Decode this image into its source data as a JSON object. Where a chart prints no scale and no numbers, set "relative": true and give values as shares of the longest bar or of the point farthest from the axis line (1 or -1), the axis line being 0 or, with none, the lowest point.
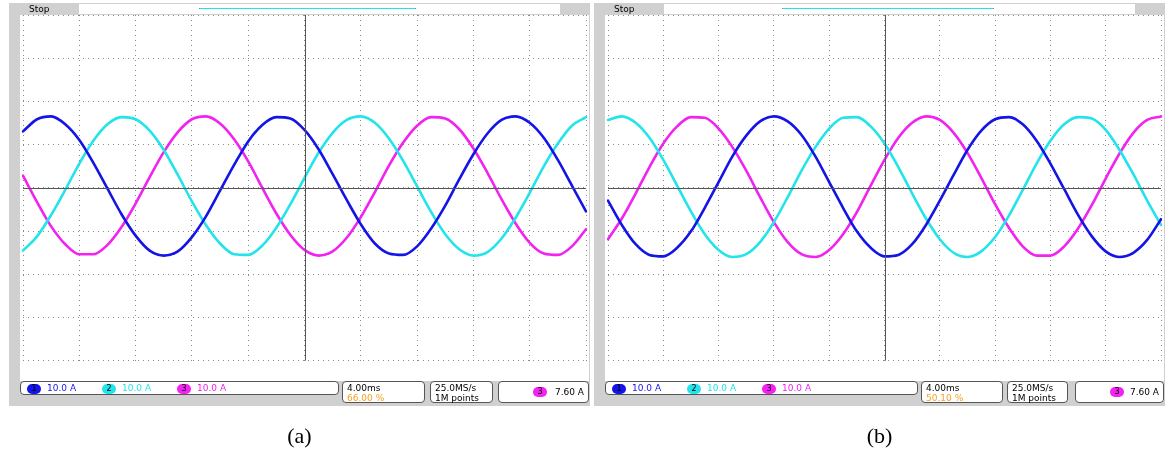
{
  "chart_data": [
    {
      "type": "line",
      "title": "(a)",
      "relative": true,
      "grid": true,
      "legend": "bottom",
      "marker": "none",
      "line_style": "solid",
      "categories": [
        null,
        null,
        null,
        null,
        null,
        null,
        null,
        null,
        null,
        null,
        null,
        null,
        null,
        null,
        null,
        null,
        null,
        null,
        null,
        null,
        null,
        null,
        null,
        null,
        null,
        null,
        null,
        null,
        null,
        null,
        null,
        null,
        null,
        null,
        null,
        null,
        null,
        null,
        null,
        null,
        null
      ],
      "series": [
        {
          "name": "1",
          "color": "#1414e6",
          "values": [
            0.79,
            0.96,
            1.0,
            0.89,
            0.67,
            0.35,
            -0.01,
            -0.37,
            -0.67,
            -0.88,
            -0.95,
            -0.89,
            -0.69,
            -0.4,
            -0.04,
            0.32,
            0.65,
            0.88,
            0.99,
            0.97,
            0.81,
            0.54,
            0.19,
            -0.17,
            -0.51,
            -0.78,
            -0.92,
            -0.94,
            -0.82,
            -0.57,
            -0.25,
            0.12,
            0.47,
            0.76,
            0.95,
            1.0,
            0.91,
            0.7,
            0.39,
            0.03,
            -0.33
          ]
        },
        {
          "name": "2",
          "color": "#22e4ea",
          "values": [
            -0.88,
            -0.68,
            -0.38,
            -0.03,
            0.34,
            0.66,
            0.89,
            0.99,
            0.96,
            0.8,
            0.53,
            0.18,
            -0.19,
            -0.52,
            -0.78,
            -0.93,
            -0.94,
            -0.81,
            -0.56,
            -0.23,
            0.14,
            0.49,
            0.77,
            0.95,
            1.0,
            0.91,
            0.69,
            0.38,
            0.02,
            -0.34,
            -0.65,
            -0.86,
            -0.95,
            -0.9,
            -0.71,
            -0.42,
            -0.07,
            0.3,
            0.62,
            0.87,
            0.99
          ]
        },
        {
          "name": "3",
          "color": "#f222f0",
          "values": [
            0.17,
            -0.2,
            -0.54,
            -0.79,
            -0.93,
            -0.93,
            -0.8,
            -0.55,
            -0.22,
            0.15,
            0.5,
            0.78,
            0.96,
            1.0,
            0.9,
            0.68,
            0.37,
            0.0,
            -0.36,
            -0.66,
            -0.87,
            -0.95,
            -0.89,
            -0.7,
            -0.41,
            -0.06,
            0.31,
            0.63,
            0.87,
            0.99,
            0.97,
            0.82,
            0.55,
            0.21,
            -0.16,
            -0.5,
            -0.77,
            -0.92,
            -0.94,
            -0.82,
            -0.58
          ]
        }
      ],
      "annotations": [
        "10.0 A",
        "10.0 A",
        "10.0 A",
        "4.00ms",
        "66.00 %",
        "25.0MS/s",
        "1M points",
        "3",
        "7.60 A",
        "Stop"
      ]
    },
    {
      "type": "line",
      "title": "(b)",
      "relative": true,
      "grid": true,
      "legend": "bottom",
      "marker": "none",
      "line_style": "solid",
      "categories": [
        null,
        null,
        null,
        null,
        null,
        null,
        null,
        null,
        null,
        null,
        null,
        null,
        null,
        null,
        null,
        null,
        null,
        null,
        null,
        null,
        null,
        null,
        null,
        null,
        null,
        null,
        null,
        null,
        null,
        null,
        null,
        null,
        null,
        null,
        null,
        null,
        null,
        null,
        null,
        null,
        null
      ],
      "series": [
        {
          "name": "1",
          "color": "#1414e6",
          "values": [
            -0.18,
            -0.52,
            -0.79,
            -0.94,
            -0.96,
            -0.84,
            -0.61,
            -0.28,
            0.08,
            0.44,
            0.73,
            0.93,
            1.0,
            0.93,
            0.74,
            0.44,
            0.08,
            -0.28,
            -0.61,
            -0.84,
            -0.96,
            -0.94,
            -0.79,
            -0.52,
            -0.18,
            0.18,
            0.53,
            0.8,
            0.96,
            0.99,
            0.89,
            0.66,
            0.34,
            -0.02,
            -0.38,
            -0.68,
            -0.89,
            -0.97,
            -0.91,
            -0.73,
            -0.44
          ]
        },
        {
          "name": "2",
          "color": "#22e4ea",
          "values": [
            0.95,
            1.0,
            0.91,
            0.7,
            0.39,
            0.03,
            -0.33,
            -0.65,
            -0.87,
            -0.97,
            -0.93,
            -0.76,
            -0.48,
            -0.13,
            0.24,
            0.57,
            0.83,
            0.98,
            0.99,
            0.86,
            0.62,
            0.29,
            -0.08,
            -0.43,
            -0.72,
            -0.91,
            -0.97,
            -0.89,
            -0.69,
            -0.39,
            -0.03,
            0.34,
            0.66,
            0.89,
            0.99,
            0.97,
            0.81,
            0.53,
            0.19,
            -0.18,
            -0.52
          ]
        },
        {
          "name": "3",
          "color": "#f222f0",
          "values": [
            -0.72,
            -0.43,
            -0.08,
            0.29,
            0.62,
            0.86,
            0.99,
            0.98,
            0.83,
            0.57,
            0.24,
            -0.13,
            -0.48,
            -0.76,
            -0.93,
            -0.97,
            -0.87,
            -0.65,
            -0.34,
            0.03,
            0.39,
            0.7,
            0.91,
            1.0,
            0.95,
            0.77,
            0.49,
            0.14,
            -0.23,
            -0.56,
            -0.82,
            -0.95,
            -0.95,
            -0.82,
            -0.57,
            -0.24,
            0.13,
            0.48,
            0.77,
            0.95,
            1.0
          ]
        }
      ],
      "annotations": [
        "10.0 A",
        "10.0 A",
        "10.0 A",
        "4.00ms",
        "50.10 %",
        "25.0MS/s",
        "1M points",
        "3",
        "7.60 A",
        "Stop"
      ]
    }
  ]
}
